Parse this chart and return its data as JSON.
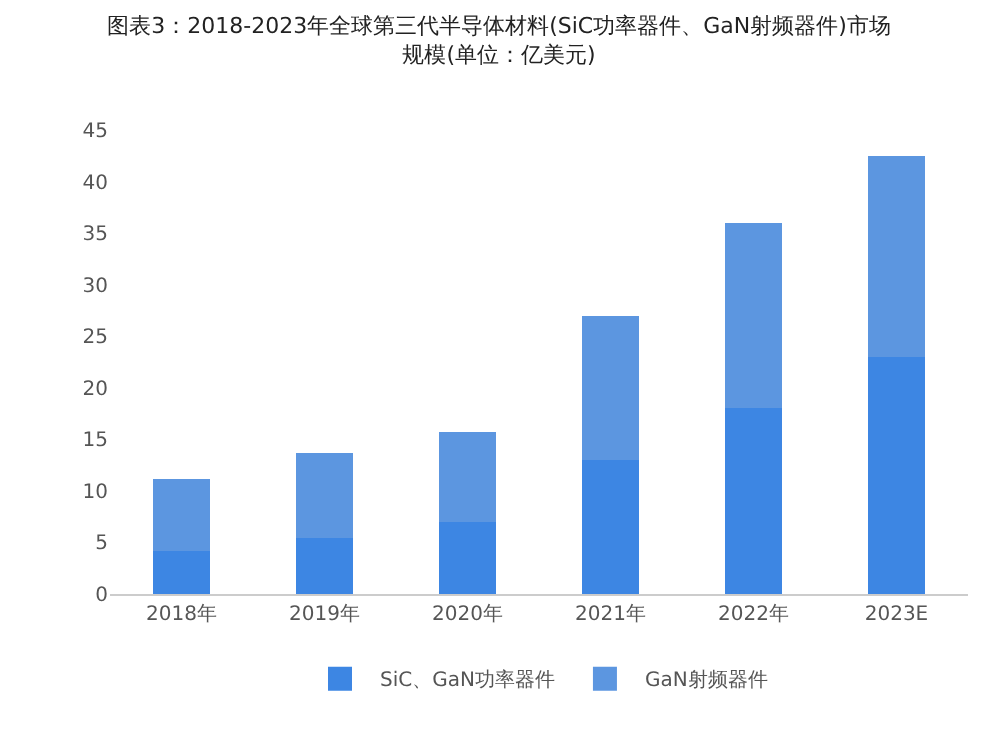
{
  "chart_data": {
    "type": "bar",
    "stacked": true,
    "title": "图表3：2018-2023年全球第三代半导体材料(SiC功率器件、GaN射频器件)市场规模(单位：亿美元)",
    "categories": [
      "2018年",
      "2019年",
      "2020年",
      "2021年",
      "2022年",
      "2023E"
    ],
    "series": [
      {
        "name": "SiC、GaN功率器件",
        "color": "#3d86e3",
        "values": [
          4.2,
          5.4,
          7,
          13,
          18,
          23
        ]
      },
      {
        "name": "GaN射频器件",
        "color": "#5c96e0",
        "values": [
          7,
          8.3,
          8.7,
          14,
          18,
          19.5
        ]
      }
    ],
    "ylim": [
      0,
      45
    ],
    "yticks": [
      0,
      5,
      10,
      15,
      20,
      25,
      30,
      35,
      40,
      45
    ],
    "grid": false,
    "legend": "bottom"
  }
}
